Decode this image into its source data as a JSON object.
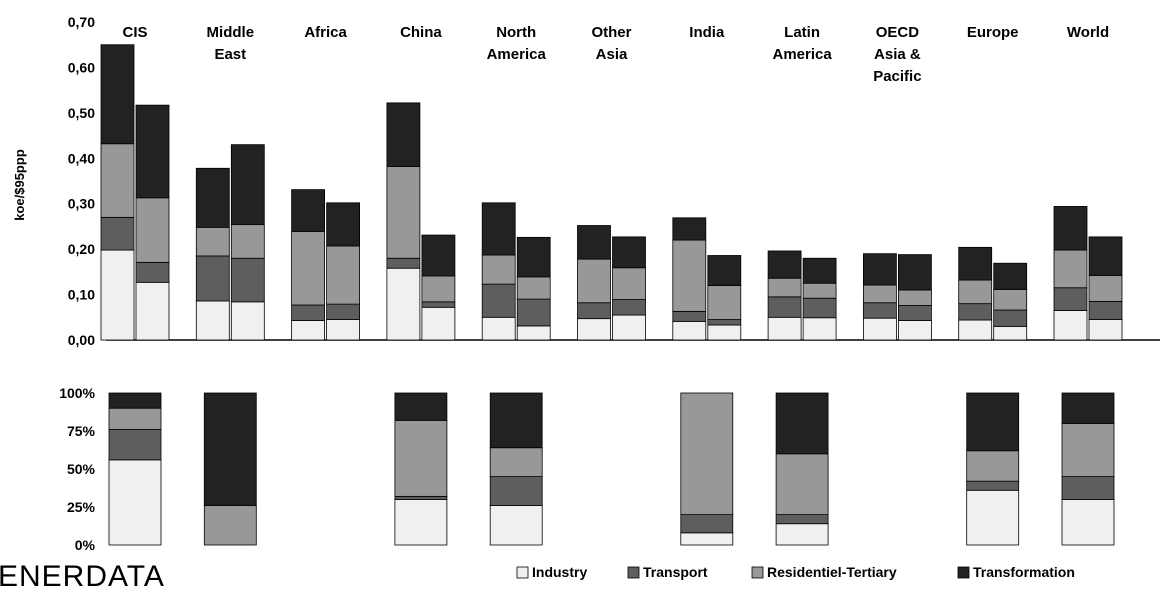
{
  "brand": "ENERDATA",
  "colors": {
    "Industry": "#f0f0f0",
    "Transport": "#5e5e5e",
    "Residentiel-Tertiary": "#989898",
    "Transformation": "#222222"
  },
  "chart_data": [
    {
      "type": "bar",
      "stacked": true,
      "ylabel": "koe/$95ppp",
      "ylim": [
        0,
        0.7
      ],
      "yticks": [
        "0,00",
        "0,10",
        "0,20",
        "0,30",
        "0,40",
        "0,50",
        "0,60",
        "0,70"
      ],
      "categories": [
        "CIS",
        "Middle East",
        "Africa",
        "China",
        "North America",
        "Other Asia",
        "India",
        "Latin America",
        "OECD Asia & Pacific",
        "Europe",
        "World"
      ],
      "category_label_lines": [
        [
          "CIS"
        ],
        [
          "Middle",
          "East"
        ],
        [
          "Africa"
        ],
        [
          "China"
        ],
        [
          "North",
          "America"
        ],
        [
          "Other",
          "Asia"
        ],
        [
          "India"
        ],
        [
          "Latin",
          "America"
        ],
        [
          "OECD",
          "Asia &",
          "Pacific"
        ],
        [
          "Europe"
        ],
        [
          "World"
        ]
      ],
      "bars_per_category": 2,
      "series": [
        {
          "name": "Industry",
          "values": [
            [
              0.198,
              0.127
            ],
            [
              0.086,
              0.084
            ],
            [
              0.043,
              0.045
            ],
            [
              0.158,
              0.072
            ],
            [
              0.05,
              0.031
            ],
            [
              0.047,
              0.055
            ],
            [
              0.041,
              0.033
            ],
            [
              0.05,
              0.049
            ],
            [
              0.048,
              0.043
            ],
            [
              0.044,
              0.03
            ],
            [
              0.065,
              0.045
            ]
          ]
        },
        {
          "name": "Transport",
          "values": [
            [
              0.072,
              0.044
            ],
            [
              0.099,
              0.096
            ],
            [
              0.034,
              0.034
            ],
            [
              0.022,
              0.012
            ],
            [
              0.073,
              0.059
            ],
            [
              0.035,
              0.034
            ],
            [
              0.022,
              0.012
            ],
            [
              0.045,
              0.043
            ],
            [
              0.034,
              0.033
            ],
            [
              0.036,
              0.036
            ],
            [
              0.05,
              0.04
            ]
          ]
        },
        {
          "name": "Residentiel-Tertiary",
          "values": [
            [
              0.162,
              0.142
            ],
            [
              0.063,
              0.074
            ],
            [
              0.162,
              0.128
            ],
            [
              0.202,
              0.057
            ],
            [
              0.064,
              0.049
            ],
            [
              0.096,
              0.07
            ],
            [
              0.157,
              0.075
            ],
            [
              0.041,
              0.033
            ],
            [
              0.039,
              0.034
            ],
            [
              0.052,
              0.045
            ],
            [
              0.083,
              0.057
            ]
          ]
        },
        {
          "name": "Transformation",
          "values": [
            [
              0.218,
              0.204
            ],
            [
              0.13,
              0.176
            ],
            [
              0.092,
              0.095
            ],
            [
              0.14,
              0.09
            ],
            [
              0.115,
              0.087
            ],
            [
              0.074,
              0.068
            ],
            [
              0.049,
              0.066
            ],
            [
              0.06,
              0.055
            ],
            [
              0.069,
              0.078
            ],
            [
              0.072,
              0.058
            ],
            [
              0.096,
              0.085
            ]
          ]
        }
      ],
      "legend": [
        "Industry",
        "Transport",
        "Residentiel-Tertiary",
        "Transformation"
      ],
      "legend_position": "bottom",
      "grid": false
    },
    {
      "type": "bar",
      "stacked": true,
      "percent": true,
      "ylim": [
        0,
        100
      ],
      "yticks": [
        "0%",
        "25%",
        "50%",
        "75%",
        "100%"
      ],
      "categories": [
        "CIS",
        "Middle East",
        "China",
        "North America",
        "India",
        "Latin America",
        "Europe",
        "World"
      ],
      "series": [
        {
          "name": "Industry",
          "values": [
            56,
            0,
            30,
            26,
            8,
            14,
            36,
            30
          ]
        },
        {
          "name": "Transport",
          "values": [
            20,
            0,
            2,
            19,
            12,
            6,
            6,
            15
          ]
        },
        {
          "name": "Residentiel-Tertiary",
          "values": [
            14,
            26,
            50,
            19,
            80,
            40,
            20,
            35
          ]
        },
        {
          "name": "Transformation",
          "values": [
            10,
            74,
            18,
            36,
            0,
            40,
            38,
            20
          ]
        }
      ],
      "grid": false
    }
  ]
}
